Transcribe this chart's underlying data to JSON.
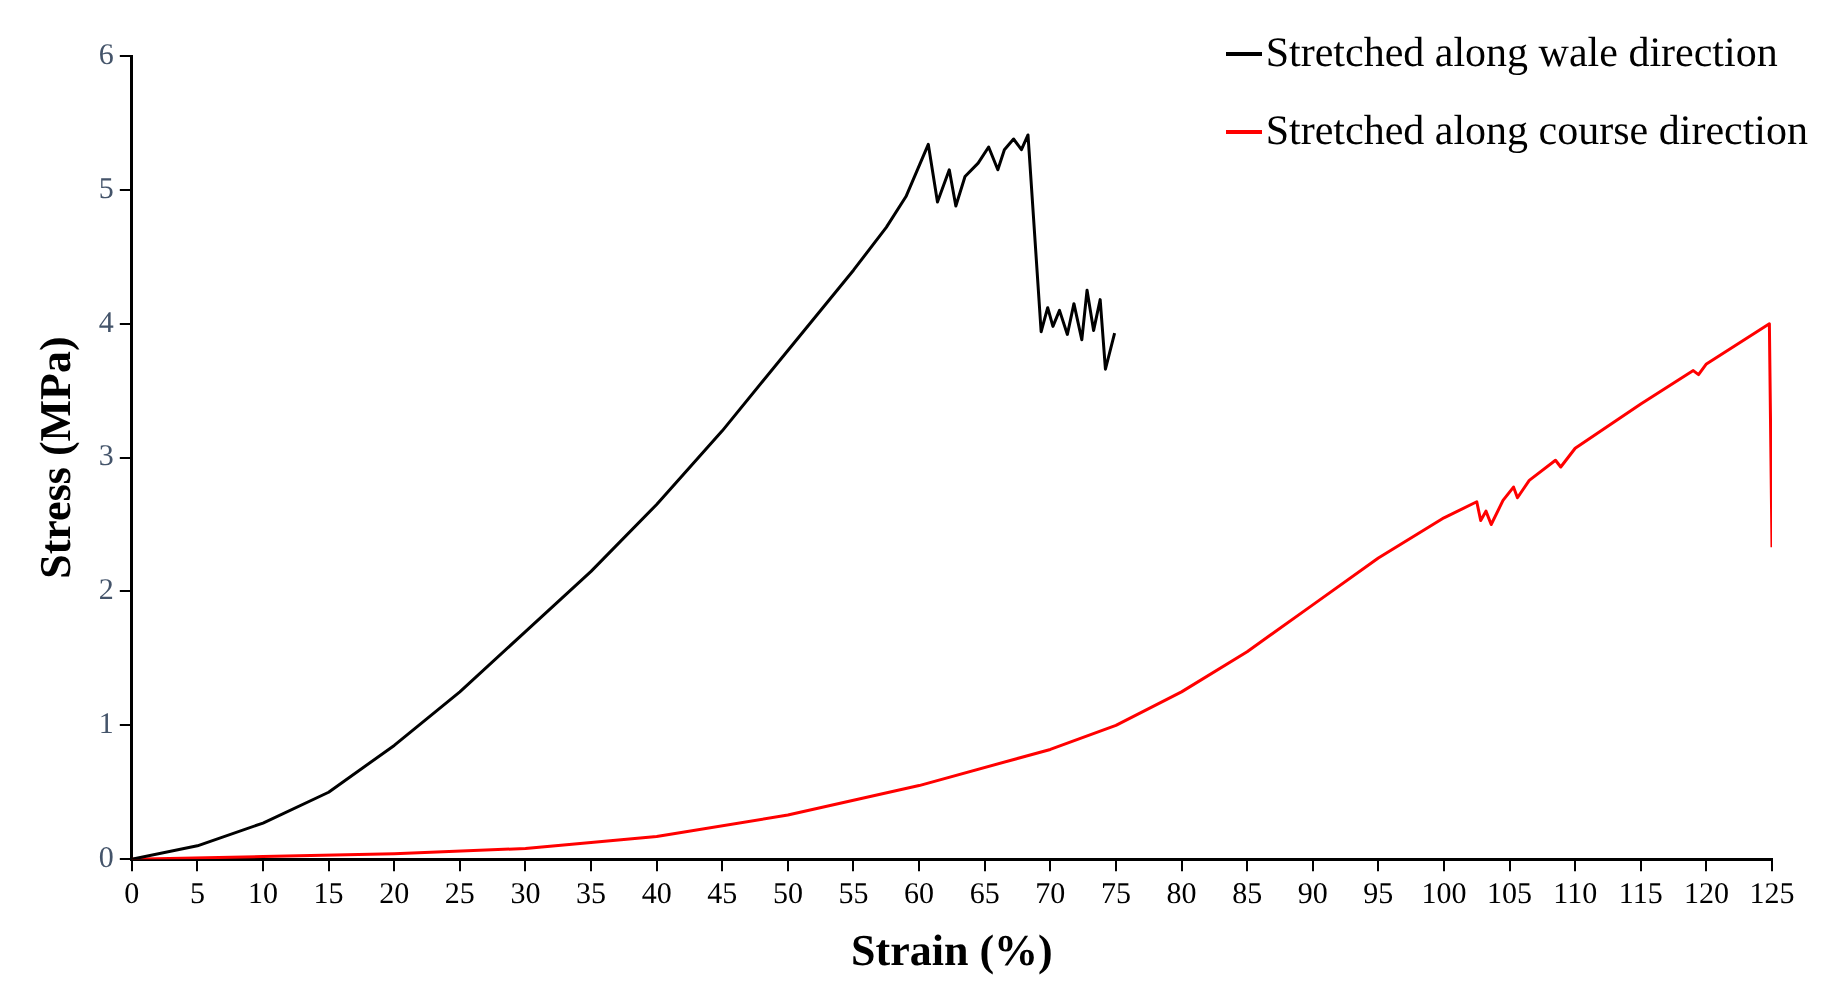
{
  "chart_data": {
    "type": "line",
    "xlabel": "Strain (%)",
    "ylabel": "Stress (MPa)",
    "xlim": [
      0,
      125
    ],
    "xticks": [
      0,
      5,
      10,
      15,
      20,
      25,
      30,
      35,
      40,
      45,
      50,
      55,
      60,
      65,
      70,
      75,
      80,
      85,
      90,
      95,
      100,
      105,
      110,
      115,
      120,
      125
    ],
    "ylim": [
      0,
      6
    ],
    "yticks": [
      0,
      1,
      2,
      3,
      4,
      5,
      6
    ],
    "grid": false,
    "legend": "top right",
    "marker": "none",
    "line_style": "solid",
    "series": [
      {
        "name": "Stretched along wale direction",
        "color": "#000000",
        "x": [
          0,
          5,
          10,
          15,
          20,
          25,
          30,
          35,
          40,
          45,
          50,
          55,
          57.5,
          59,
          60.7,
          61.4,
          62.3,
          62.8,
          63.5,
          64.5,
          65.3,
          66,
          66.5,
          67.2,
          67.8,
          68.3,
          69.3,
          69.8,
          70.2,
          70.7,
          71.3,
          71.8,
          72.4,
          72.8,
          73.3,
          73.8,
          74.2,
          74.9
        ],
        "values": [
          0,
          0.1,
          0.27,
          0.5,
          0.85,
          1.25,
          1.7,
          2.15,
          2.65,
          3.2,
          3.8,
          4.4,
          4.72,
          4.95,
          5.34,
          4.91,
          5.15,
          4.88,
          5.1,
          5.2,
          5.32,
          5.15,
          5.3,
          5.38,
          5.3,
          5.41,
          3.94,
          4.12,
          3.98,
          4.1,
          3.92,
          4.15,
          3.88,
          4.25,
          3.95,
          4.18,
          3.66,
          3.93
        ]
      },
      {
        "name": "Stretched along course direction",
        "color": "#ff0000",
        "x": [
          0,
          10,
          20,
          30,
          40,
          50,
          60,
          70,
          75,
          80,
          85,
          90,
          95,
          100,
          102.5,
          102.8,
          103.2,
          103.6,
          104.5,
          105.3,
          105.6,
          106.5,
          108.5,
          108.9,
          110,
          115,
          119,
          119.4,
          120,
          124.8,
          125
        ],
        "values": [
          0,
          0.02,
          0.04,
          0.08,
          0.17,
          0.33,
          0.55,
          0.82,
          1.0,
          1.25,
          1.55,
          1.9,
          2.25,
          2.55,
          2.67,
          2.53,
          2.6,
          2.5,
          2.68,
          2.78,
          2.7,
          2.83,
          2.98,
          2.93,
          3.07,
          3.4,
          3.65,
          3.62,
          3.7,
          4.0,
          2.33
        ]
      }
    ]
  }
}
